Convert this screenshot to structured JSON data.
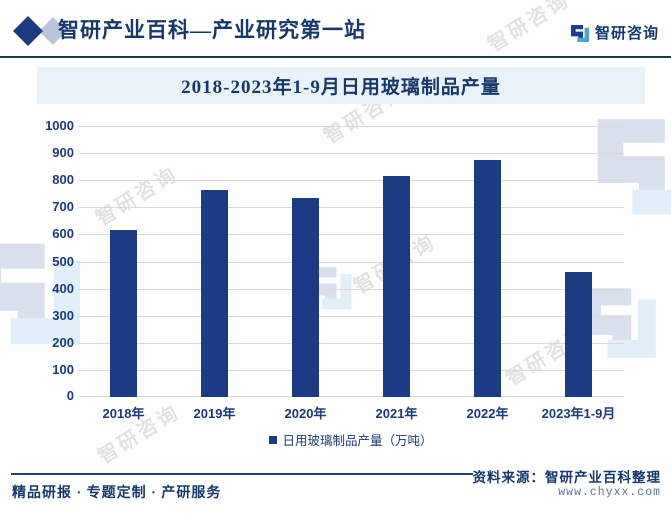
{
  "header": {
    "title": "智研产业百科—产业研究第一站",
    "brand_name": "智研咨询"
  },
  "banner": {
    "title": "2018-2023年1-9月日用玻璃制品产量"
  },
  "chart_data": {
    "type": "bar",
    "title": "2018-2023年1-9月日用玻璃制品产量",
    "categories": [
      "2018年",
      "2019年",
      "2020年",
      "2021年",
      "2022年",
      "2023年1-9月"
    ],
    "values": [
      615,
      762,
      733,
      817,
      876,
      462
    ],
    "legend": [
      "日用玻璃制品产量（万吨）"
    ],
    "ylabel": "",
    "xlabel": "",
    "ylim": [
      0,
      1000
    ],
    "ytick_step": 100,
    "grid": true,
    "legend_position": "bottom",
    "bar_color": "#1b3c85"
  },
  "footer": {
    "services": "精品研报 · 专题定制 · 产研服务",
    "source": "资料来源：智研产业百科整理",
    "website": "www.chyxx.com"
  },
  "watermark": {
    "text": "智研咨询"
  },
  "icons": {
    "header_diamond": "double-diamond",
    "brand_logo": "zhiyan-logo"
  },
  "colors": {
    "bar": "#1b3c85",
    "navy_text": "#17386b",
    "axis_text": "#1c3a7a",
    "gridline": "#d9d9d9",
    "banner_bg": "#e9f1f9"
  }
}
